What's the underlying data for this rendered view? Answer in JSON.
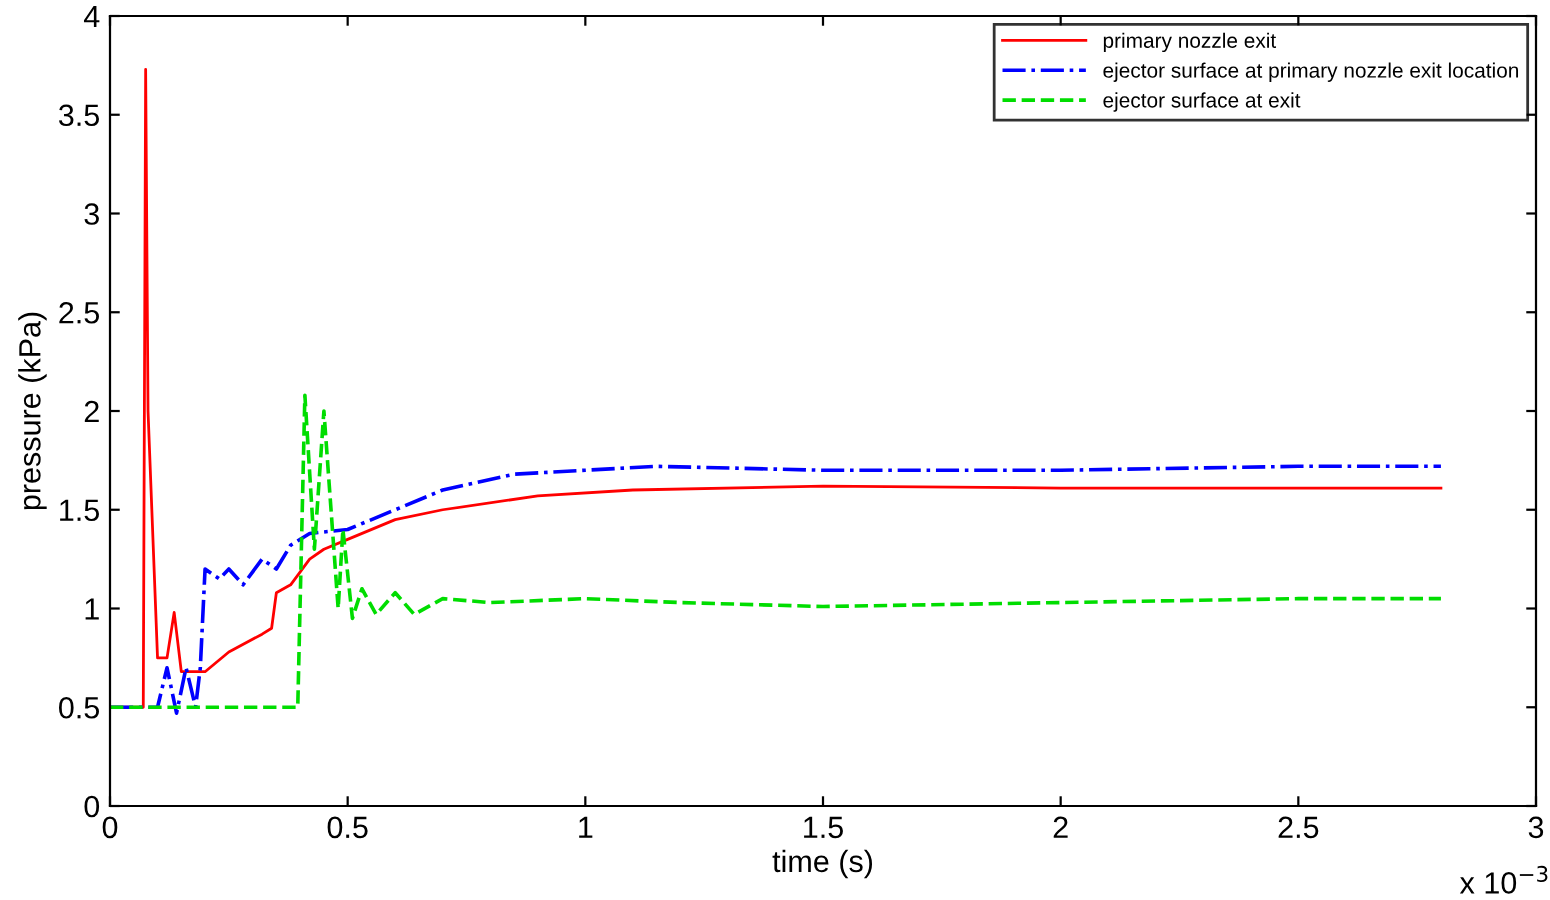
{
  "chart_data": {
    "type": "line",
    "xlabel": "time (s)",
    "ylabel": "pressure (kPa)",
    "xlim": [
      0,
      3
    ],
    "xticks": [
      0,
      0.5,
      1,
      1.5,
      2,
      2.5,
      3
    ],
    "ylim": [
      0,
      4
    ],
    "yticks": [
      0,
      0.5,
      1,
      1.5,
      2,
      2.5,
      3,
      3.5,
      4
    ],
    "grid": false,
    "legend": "top right",
    "annotations": [
      "x 10$^{−3}$"
    ],
    "series": [
      {
        "name": "primary nozzle exit",
        "color": "#ff0000",
        "line_style": "solid",
        "x": [
          0,
          0.07,
          0.075,
          0.08,
          0.1,
          0.12,
          0.135,
          0.15,
          0.2,
          0.25,
          0.32,
          0.34,
          0.35,
          0.38,
          0.42,
          0.45,
          0.5,
          0.6,
          0.7,
          0.9,
          1.1,
          1.5,
          2.0,
          2.8
        ],
        "values": [
          0.5,
          0.5,
          3.73,
          2.0,
          0.75,
          0.75,
          0.98,
          0.68,
          0.68,
          0.78,
          0.87,
          0.9,
          1.08,
          1.12,
          1.25,
          1.3,
          1.35,
          1.45,
          1.5,
          1.57,
          1.6,
          1.62,
          1.61,
          1.61
        ]
      },
      {
        "name": "ejector surface at primary nozzle exit location",
        "color": "#0000ff",
        "line_style": "dashdot",
        "x": [
          0,
          0.1,
          0.12,
          0.14,
          0.16,
          0.18,
          0.19,
          0.2,
          0.23,
          0.25,
          0.28,
          0.32,
          0.35,
          0.38,
          0.42,
          0.5,
          0.6,
          0.7,
          0.85,
          1.0,
          1.15,
          1.5,
          2.0,
          2.5,
          2.8
        ],
        "values": [
          0.5,
          0.5,
          0.7,
          0.47,
          0.7,
          0.5,
          0.7,
          1.2,
          1.15,
          1.2,
          1.12,
          1.25,
          1.2,
          1.32,
          1.38,
          1.4,
          1.5,
          1.6,
          1.68,
          1.7,
          1.72,
          1.7,
          1.7,
          1.72,
          1.72
        ]
      },
      {
        "name": "ejector surface at exit",
        "color": "#00dd00",
        "line_style": "dashed",
        "x": [
          0,
          0.395,
          0.41,
          0.43,
          0.45,
          0.48,
          0.49,
          0.51,
          0.53,
          0.56,
          0.6,
          0.64,
          0.7,
          0.8,
          1.0,
          1.2,
          1.5,
          2.0,
          2.5,
          2.8
        ],
        "values": [
          0.5,
          0.5,
          2.08,
          1.3,
          2.0,
          1.0,
          1.4,
          0.95,
          1.1,
          0.97,
          1.08,
          0.97,
          1.05,
          1.03,
          1.05,
          1.03,
          1.01,
          1.03,
          1.05,
          1.05
        ]
      }
    ]
  }
}
